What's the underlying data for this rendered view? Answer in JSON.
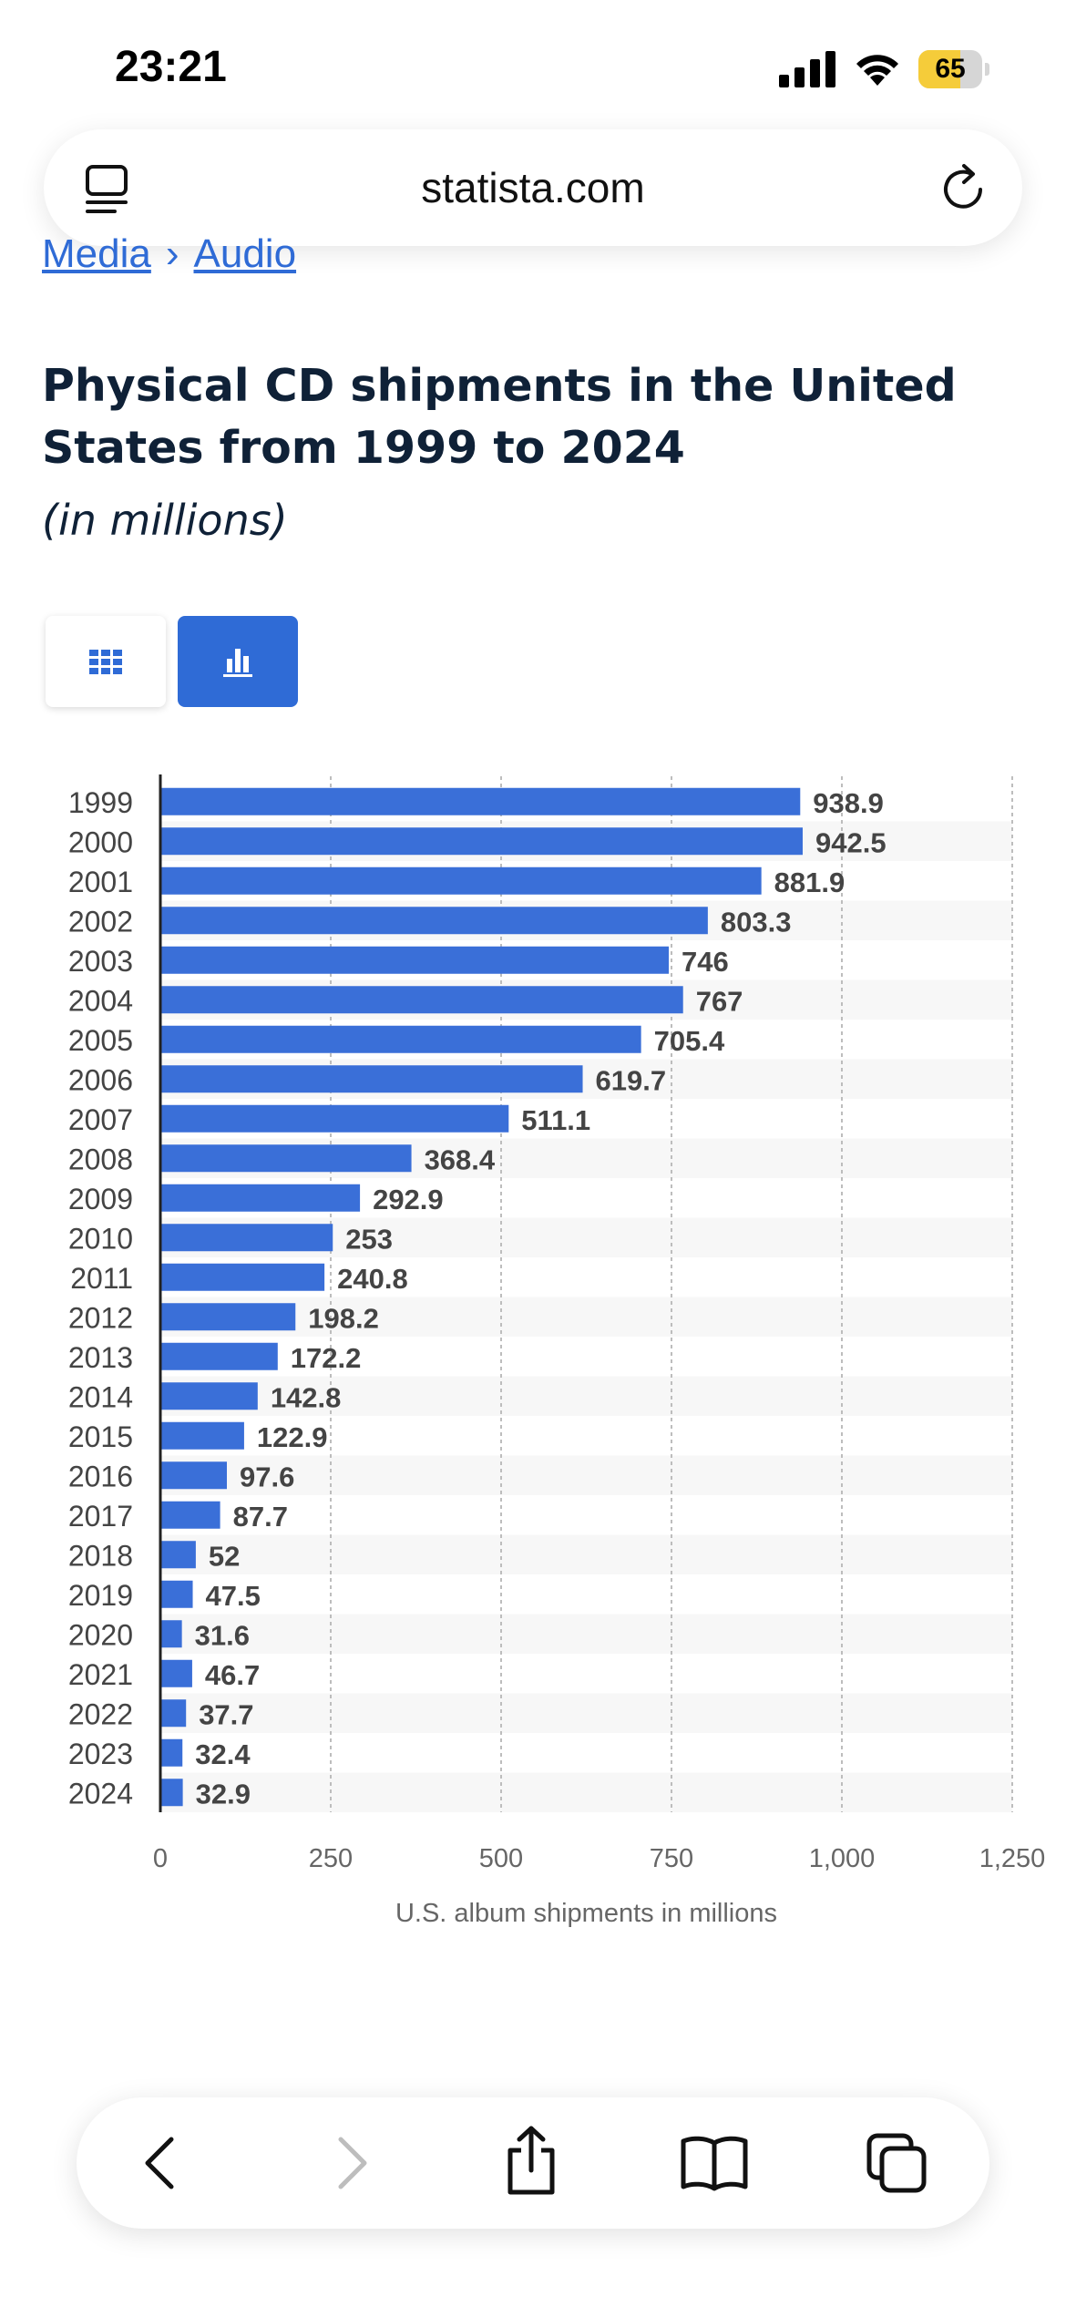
{
  "status_bar": {
    "time": "23:21",
    "battery": "65",
    "battery_fraction": 0.65
  },
  "browser": {
    "url": "statista.com"
  },
  "breadcrumb": {
    "items": [
      "Media",
      "Audio"
    ],
    "separator": "›"
  },
  "page": {
    "title": "Physical CD shipments in the United States from 1999 to 2024",
    "subtitle": "(in millions)"
  },
  "colors": {
    "bar": "#3a6fd8",
    "accent": "#2f6bd6",
    "title": "#0f2137"
  },
  "icons": [
    "tabs-menu-icon",
    "reload-icon",
    "table-view-icon",
    "chart-view-icon",
    "back-icon",
    "forward-icon",
    "share-icon",
    "bookmarks-icon",
    "tabs-icon"
  ],
  "chart_data": {
    "type": "bar",
    "orientation": "horizontal",
    "categories": [
      "1999",
      "2000",
      "2001",
      "2002",
      "2003",
      "2004",
      "2005",
      "2006",
      "2007",
      "2008",
      "2009",
      "2010",
      "2011",
      "2012",
      "2013",
      "2014",
      "2015",
      "2016",
      "2017",
      "2018",
      "2019",
      "2020",
      "2021",
      "2022",
      "2023",
      "2024"
    ],
    "values": [
      938.9,
      942.5,
      881.9,
      803.3,
      746,
      767,
      705.4,
      619.7,
      511.1,
      368.4,
      292.9,
      253,
      240.8,
      198.2,
      172.2,
      142.8,
      122.9,
      97.6,
      87.7,
      52,
      47.5,
      31.6,
      46.7,
      37.7,
      32.4,
      32.9
    ],
    "value_labels": [
      "938.9",
      "942.5",
      "881.9",
      "803.3",
      "746",
      "767",
      "705.4",
      "619.7",
      "511.1",
      "368.4",
      "292.9",
      "253",
      "240.8",
      "198.2",
      "172.2",
      "142.8",
      "122.9",
      "97.6",
      "87.7",
      "52",
      "47.5",
      "31.6",
      "46.7",
      "37.7",
      "32.4",
      "32.9"
    ],
    "xlabel": "U.S. album shipments in millions",
    "xlim": [
      0,
      1250
    ],
    "ticks": [
      0,
      250,
      500,
      750,
      1000,
      1250
    ],
    "tick_labels": [
      "0",
      "250",
      "500",
      "750",
      "1,000",
      "1,250"
    ],
    "grid": true
  }
}
